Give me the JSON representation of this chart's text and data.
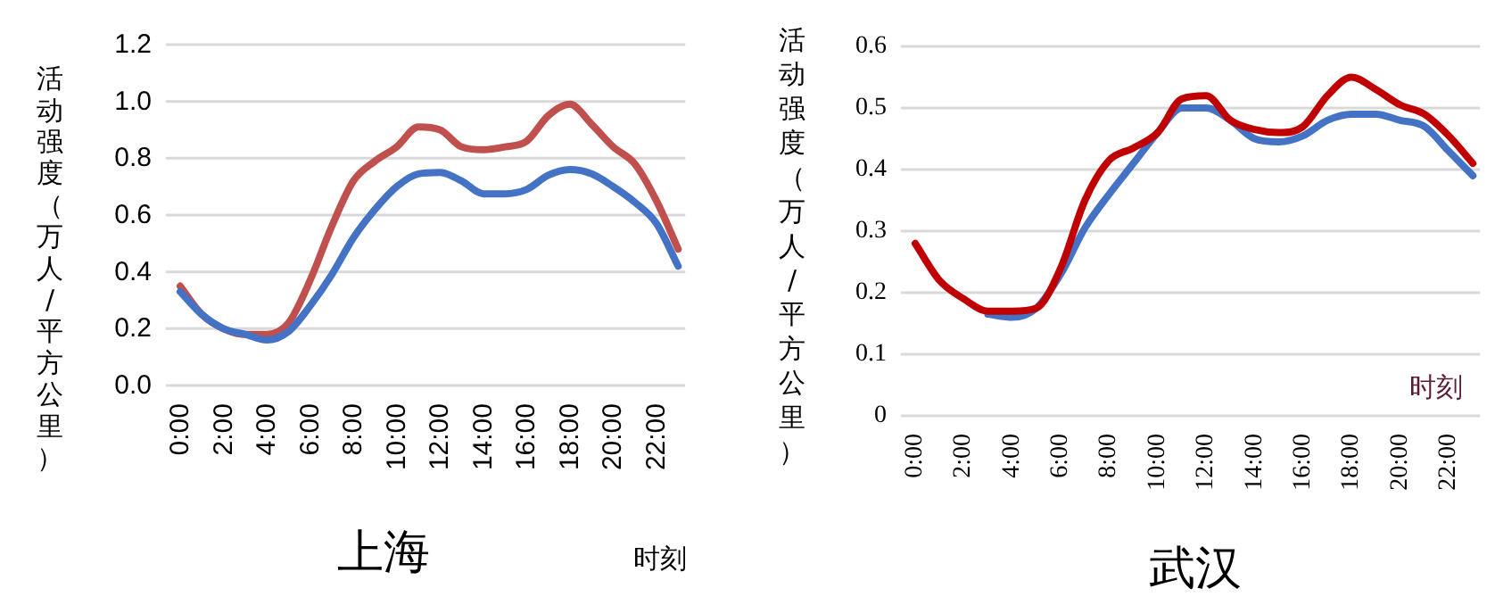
{
  "chart_data": [
    {
      "type": "line",
      "title": "上海",
      "xlabel": "时刻",
      "ylabel": "活动强度（万人/平方公里）",
      "categories": [
        "0:00",
        null,
        "2:00",
        null,
        "4:00",
        null,
        "6:00",
        null,
        "8:00",
        null,
        "10:00",
        null,
        "12:00",
        null,
        "14:00",
        null,
        "16:00",
        null,
        "18:00",
        null,
        "20:00",
        null,
        "22:00",
        null
      ],
      "series": [
        {
          "color": "#c0504d",
          "values": [
            0.35,
            0.25,
            0.2,
            0.18,
            0.18,
            0.22,
            0.37,
            0.56,
            0.72,
            0.79,
            0.84,
            0.91,
            0.9,
            0.84,
            0.83,
            0.84,
            0.86,
            0.95,
            0.99,
            0.92,
            0.84,
            0.78,
            0.65,
            0.48
          ]
        },
        {
          "color": "#4472c4",
          "values": [
            0.33,
            0.25,
            0.2,
            0.18,
            0.16,
            0.19,
            0.28,
            0.39,
            0.52,
            0.62,
            0.7,
            0.745,
            0.75,
            0.72,
            0.675,
            0.675,
            0.69,
            0.74,
            0.76,
            0.745,
            0.7,
            0.645,
            0.57,
            0.42
          ]
        }
      ],
      "ylim": [
        0,
        1.2
      ],
      "yticks": [
        {
          "value": 0,
          "label": "0.0"
        },
        {
          "value": 0.2,
          "label": "0.2"
        },
        {
          "value": 0.4,
          "label": "0.4"
        },
        {
          "value": 0.6,
          "label": "0.6"
        },
        {
          "value": 0.8,
          "label": "0.8"
        },
        {
          "value": 1,
          "label": "1.0"
        },
        {
          "value": 1.2,
          "label": "1.2"
        }
      ],
      "grid": "y"
    },
    {
      "type": "line",
      "title": "武汉",
      "xlabel": "时刻",
      "ylabel": "活动强度（万人/平方公里）",
      "categories": [
        "0:00",
        null,
        "2:00",
        null,
        "4:00",
        null,
        "6:00",
        null,
        "8:00",
        null,
        "10:00",
        null,
        "12:00",
        null,
        "14:00",
        null,
        "16:00",
        null,
        "18:00",
        null,
        "20:00",
        null,
        "22:00",
        null
      ],
      "series": [
        {
          "color": "#4472c4",
          "values": [
            null,
            null,
            null,
            0.165,
            0.16,
            0.175,
            0.23,
            0.305,
            0.36,
            0.41,
            0.46,
            0.5,
            0.5,
            0.48,
            0.45,
            0.445,
            0.455,
            0.48,
            0.49,
            0.49,
            0.48,
            0.47,
            0.43,
            0.39
          ]
        },
        {
          "color": "#c00000",
          "values": [
            0.28,
            0.22,
            0.19,
            0.17,
            0.17,
            0.175,
            0.24,
            0.35,
            0.415,
            0.435,
            0.46,
            0.515,
            0.52,
            0.48,
            0.465,
            0.46,
            0.47,
            0.52,
            0.55,
            0.53,
            0.505,
            0.49,
            0.455,
            0.41
          ]
        }
      ],
      "ylim": [
        0,
        0.6
      ],
      "yticks": [
        0,
        0.1,
        0.2,
        0.3,
        0.4,
        0.5,
        0.6
      ],
      "grid": "y"
    }
  ]
}
